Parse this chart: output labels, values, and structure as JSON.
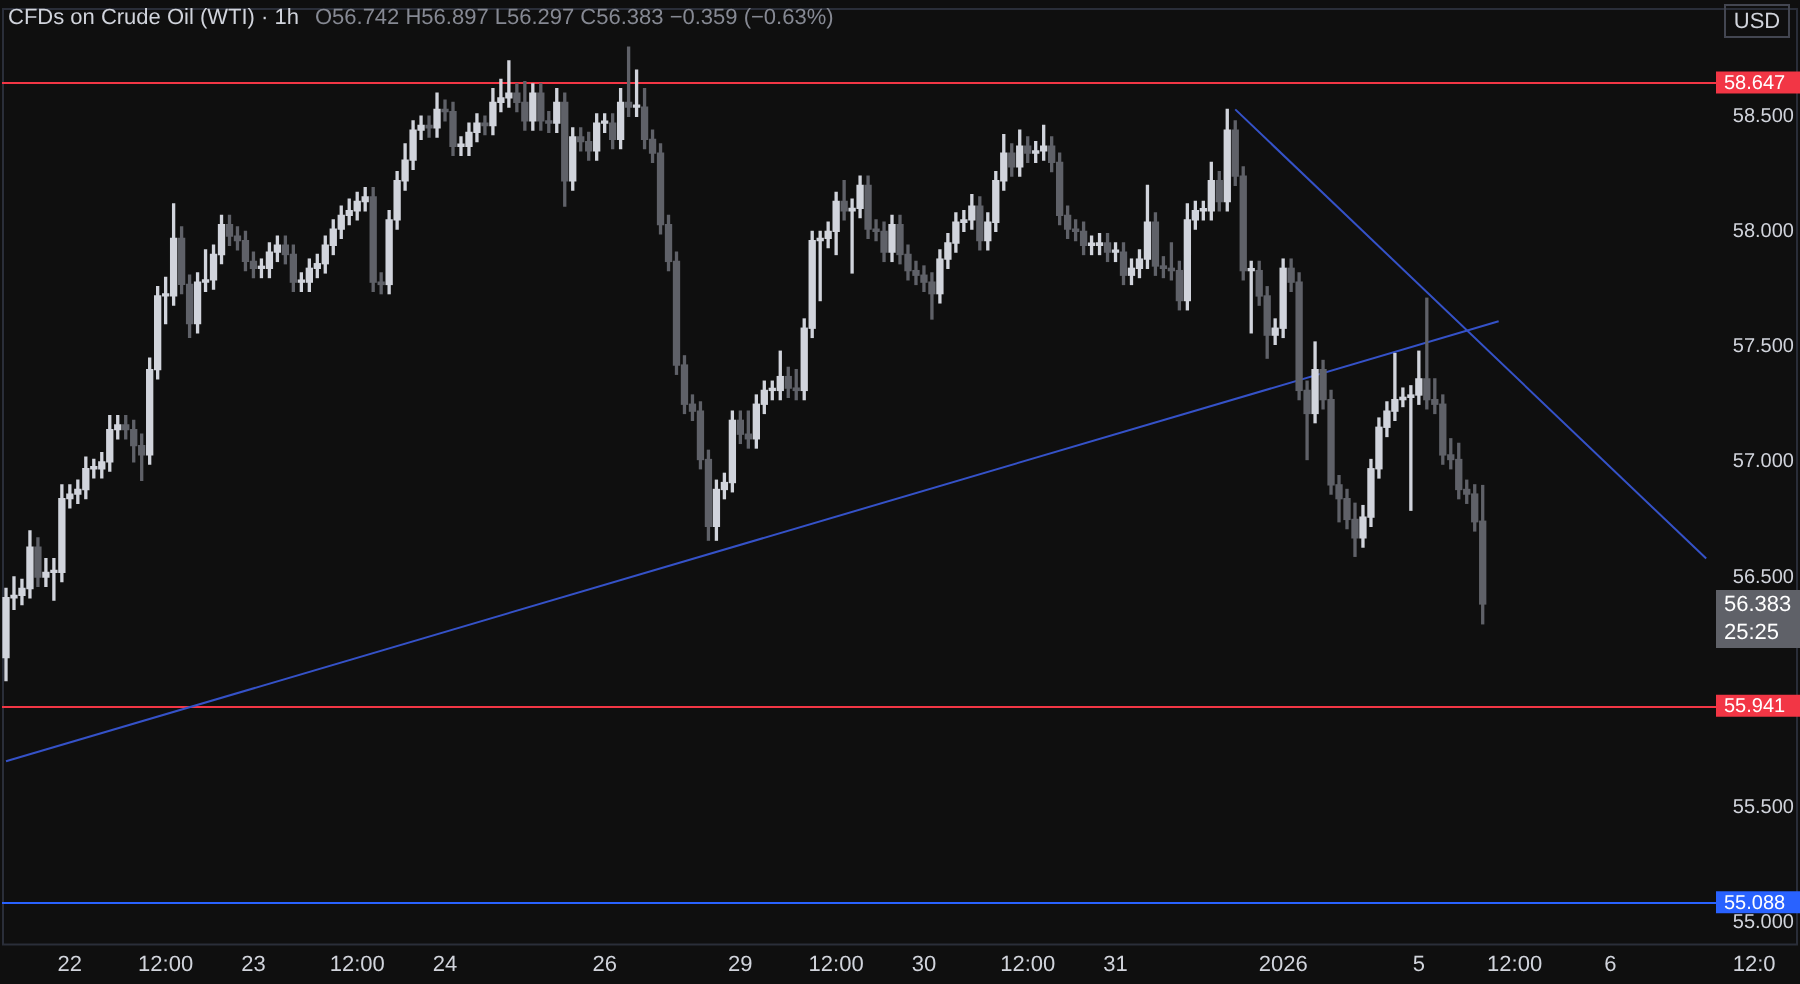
{
  "chart_data": {
    "type": "candlestick",
    "title": "CFDs on Crude Oil (WTI) · 1h",
    "subtitle": "O56.742 H56.897 L56.297 C56.383 −0.359 (−0.63%)",
    "categories": [
      null,
      null,
      null,
      null,
      null,
      null,
      null,
      null,
      "22",
      null,
      null,
      null,
      null,
      null,
      null,
      null,
      null,
      null,
      null,
      null,
      "12:00",
      null,
      null,
      null,
      null,
      null,
      null,
      null,
      null,
      null,
      null,
      "23",
      null,
      null,
      null,
      null,
      null,
      null,
      null,
      null,
      null,
      null,
      null,
      null,
      "12:00",
      null,
      null,
      null,
      null,
      null,
      null,
      null,
      null,
      null,
      null,
      "24",
      null,
      null,
      null,
      null,
      null,
      null,
      null,
      null,
      null,
      null,
      null,
      null,
      null,
      null,
      null,
      null,
      null,
      null,
      null,
      "26",
      null,
      null,
      null,
      null,
      null,
      null,
      null,
      null,
      null,
      null,
      null,
      null,
      null,
      null,
      null,
      null,
      "29",
      null,
      null,
      null,
      null,
      null,
      null,
      null,
      null,
      null,
      null,
      null,
      "12:00",
      null,
      null,
      null,
      null,
      null,
      null,
      null,
      null,
      null,
      null,
      "30",
      null,
      null,
      null,
      null,
      null,
      null,
      null,
      null,
      null,
      null,
      null,
      null,
      "12:00",
      null,
      null,
      null,
      null,
      null,
      null,
      null,
      null,
      null,
      null,
      "31",
      null,
      null,
      null,
      null,
      null,
      null,
      null,
      null,
      null,
      null,
      null,
      null,
      null,
      null,
      null,
      null,
      null,
      null,
      null,
      null,
      "2026",
      null,
      null,
      null,
      null,
      null,
      null,
      null,
      null,
      null,
      null,
      null,
      null,
      null,
      null,
      null,
      null,
      "5",
      null,
      null,
      null,
      null,
      null,
      null,
      null,
      null,
      null,
      null,
      null,
      "12:00",
      null,
      null,
      null,
      null,
      null,
      null,
      null,
      null,
      null,
      null,
      null,
      "6",
      null,
      null,
      null,
      null,
      null,
      null,
      null,
      null,
      null,
      null,
      null,
      null,
      null,
      null,
      null,
      null,
      null,
      "12:0",
      null,
      null,
      null,
      null,
      null
    ],
    "ylim": [
      54.9,
      58.97
    ],
    "yticks": [
      {
        "value": 55,
        "label": "55.000"
      },
      {
        "value": 55.5,
        "label": "55.500"
      },
      {
        "value": 56.5,
        "label": "56.500"
      },
      {
        "value": 57,
        "label": "57.000"
      },
      {
        "value": 57.5,
        "label": "57.500"
      },
      {
        "value": 58,
        "label": "58.000"
      },
      {
        "value": 58.5,
        "label": "58.500"
      }
    ],
    "grid": false,
    "legend": false,
    "series": [
      {
        "colors": [
          "#d1d4dc",
          "#d1d4dc",
          "#d1d4dc",
          "#d1d4dc",
          "#5f6168",
          "#d1d4dc",
          "#d1d4dc",
          "#d1d4dc",
          "#d1d4dc",
          "#d1d4dc",
          "#d1d4dc",
          "#d1d4dc",
          "#d1d4dc",
          "#d1d4dc",
          "#d1d4dc",
          "#5f6168",
          "#5f6168",
          "#5f6168",
          "#d1d4dc",
          "#d1d4dc",
          "#d1d4dc",
          "#d1d4dc",
          "#5f6168",
          "#5f6168",
          "#d1d4dc",
          "#d1d4dc",
          "#d1d4dc",
          "#d1d4dc",
          "#5f6168",
          "#5f6168",
          "#5f6168",
          "#5f6168",
          "#d1d4dc",
          "#d1d4dc",
          "#d1d4dc",
          "#5f6168",
          "#5f6168",
          "#d1d4dc",
          "#d1d4dc",
          "#d1d4dc",
          "#d1d4dc",
          "#d1d4dc",
          "#d1d4dc",
          "#d1d4dc",
          "#d1d4dc",
          "#d1d4dc",
          "#5f6168",
          "#5f6168",
          "#d1d4dc",
          "#d1d4dc",
          "#d1d4dc",
          "#d1d4dc",
          "#d1d4dc",
          "#5f6168",
          "#d1d4dc",
          "#5f6168",
          "#5f6168",
          "#d1d4dc",
          "#d1d4dc",
          "#d1d4dc",
          "#5f6168",
          "#d1d4dc",
          "#d1d4dc",
          "#d1d4dc",
          "#5f6168",
          "#5f6168",
          "#d1d4dc",
          "#5f6168",
          "#5f6168",
          "#d1d4dc",
          "#5f6168",
          "#d1d4dc",
          "#5f6168",
          "#5f6168",
          "#d1d4dc",
          "#d1d4dc",
          "#5f6168",
          "#d1d4dc",
          "#5f6168",
          "#d1d4dc",
          "#5f6168",
          "#5f6168",
          "#5f6168",
          "#5f6168",
          "#5f6168",
          "#5f6168",
          "#5f6168",
          "#5f6168",
          "#5f6168",
          "#d1d4dc",
          "#d1d4dc",
          "#d1d4dc",
          "#5f6168",
          "#5f6168",
          "#d1d4dc",
          "#d1d4dc",
          "#d1d4dc",
          "#d1d4dc",
          "#5f6168",
          "#5f6168",
          "#d1d4dc",
          "#d1d4dc",
          "#d1d4dc",
          "#d1d4dc",
          "#d1d4dc",
          "#5f6168",
          "#d1d4dc",
          "#d1d4dc",
          "#5f6168",
          "#5f6168",
          "#5f6168",
          "#d1d4dc",
          "#5f6168",
          "#5f6168",
          "#5f6168",
          "#5f6168",
          "#5f6168",
          "#d1d4dc",
          "#d1d4dc",
          "#d1d4dc",
          "#d1d4dc",
          "#d1d4dc",
          "#5f6168",
          "#d1d4dc",
          "#d1d4dc",
          "#d1d4dc",
          "#5f6168",
          "#d1d4dc",
          "#5f6168",
          "#d1d4dc",
          "#d1d4dc",
          "#5f6168",
          "#5f6168",
          "#5f6168",
          "#5f6168",
          "#5f6168",
          "#d1d4dc",
          "#d1d4dc",
          "#5f6168",
          "#d1d4dc",
          "#5f6168",
          "#d1d4dc",
          "#d1d4dc",
          "#d1d4dc",
          "#5f6168",
          "#5f6168",
          "#5f6168",
          "#5f6168",
          "#d1d4dc",
          "#d1d4dc",
          "#d1d4dc",
          "#d1d4dc",
          "#5f6168",
          "#d1d4dc",
          "#5f6168",
          "#5f6168",
          "#d1d4dc",
          "#5f6168",
          "#5f6168",
          "#d1d4dc",
          "#d1d4dc",
          "#5f6168",
          "#5f6168",
          "#5f6168",
          "#d1d4dc",
          "#5f6168",
          "#5f6168",
          "#5f6168",
          "#5f6168",
          "#5f6168",
          "#d1d4dc",
          "#d1d4dc",
          "#d1d4dc",
          "#d1d4dc",
          "#d1d4dc",
          "#d1d4dc",
          "#d1d4dc",
          "#d1d4dc",
          "#5f6168",
          "#5f6168",
          "#5f6168",
          "#5f6168",
          "#5f6168",
          "#5f6168",
          "#5f6168",
          "#5f6168",
          null,
          null,
          null,
          null,
          null,
          null,
          null,
          null,
          null,
          null,
          null,
          null,
          null,
          null,
          null,
          null,
          null,
          null,
          null,
          null,
          null,
          null,
          null,
          null,
          null,
          null,
          null,
          null,
          null,
          null,
          null,
          null,
          null,
          null,
          null,
          null,
          null,
          null,
          null
        ],
        "ohlc": [
          [
            56.15,
            56.45,
            56.05,
            56.41
          ],
          [
            56.41,
            56.5,
            56.36,
            56.42
          ],
          [
            56.42,
            56.49,
            56.38,
            56.45
          ],
          [
            56.45,
            56.7,
            56.41,
            56.63
          ],
          [
            56.63,
            56.67,
            56.46,
            56.5
          ],
          [
            56.5,
            56.58,
            56.46,
            56.52
          ],
          [
            56.52,
            56.58,
            56.4,
            56.52
          ],
          [
            56.52,
            56.9,
            56.48,
            56.84
          ],
          [
            56.84,
            56.9,
            56.8,
            56.86
          ],
          [
            56.86,
            56.92,
            56.82,
            56.88
          ],
          [
            56.88,
            57.02,
            56.84,
            56.97
          ],
          [
            56.97,
            57.01,
            56.93,
            56.97
          ],
          [
            56.97,
            57.04,
            56.93,
            57
          ],
          [
            57,
            57.2,
            56.96,
            57.14
          ],
          [
            57.14,
            57.2,
            57.1,
            57.16
          ],
          [
            57.16,
            57.2,
            57.1,
            57.14
          ],
          [
            57.14,
            57.18,
            57,
            57.07
          ],
          [
            57.07,
            57.12,
            56.92,
            57.03
          ],
          [
            57.03,
            57.45,
            56.99,
            57.4
          ],
          [
            57.4,
            57.76,
            57.36,
            57.72
          ],
          [
            57.72,
            57.8,
            57.6,
            57.72
          ],
          [
            57.72,
            58.12,
            57.68,
            57.97
          ],
          [
            57.97,
            58.02,
            57.73,
            57.77
          ],
          [
            57.77,
            57.81,
            57.54,
            57.6
          ],
          [
            57.6,
            57.82,
            57.56,
            57.78
          ],
          [
            57.78,
            57.92,
            57.74,
            57.79
          ],
          [
            57.79,
            57.94,
            57.75,
            57.9
          ],
          [
            57.9,
            58.07,
            57.86,
            58.03
          ],
          [
            58.03,
            58.07,
            57.94,
            57.98
          ],
          [
            57.98,
            58.02,
            57.92,
            57.96
          ],
          [
            57.96,
            58,
            57.83,
            57.87
          ],
          [
            57.87,
            57.91,
            57.8,
            57.84
          ],
          [
            57.84,
            57.88,
            57.8,
            57.84
          ],
          [
            57.84,
            57.95,
            57.8,
            57.91
          ],
          [
            57.91,
            57.98,
            57.87,
            57.94
          ],
          [
            57.94,
            57.98,
            57.86,
            57.9
          ],
          [
            57.9,
            57.94,
            57.74,
            57.78
          ],
          [
            57.78,
            57.82,
            57.74,
            57.78
          ],
          [
            57.78,
            57.88,
            57.74,
            57.84
          ],
          [
            57.84,
            57.9,
            57.8,
            57.86
          ],
          [
            57.86,
            57.98,
            57.82,
            57.94
          ],
          [
            57.94,
            58.05,
            57.9,
            58.01
          ],
          [
            58.01,
            58.11,
            57.97,
            58.07
          ],
          [
            58.07,
            58.14,
            58.03,
            58.09
          ],
          [
            58.09,
            58.17,
            58.05,
            58.13
          ],
          [
            58.13,
            58.19,
            58.09,
            58.15
          ],
          [
            58.15,
            58.19,
            57.74,
            57.78
          ],
          [
            57.78,
            57.82,
            57.73,
            57.77
          ],
          [
            57.77,
            58.09,
            57.73,
            58.05
          ],
          [
            58.05,
            58.26,
            58.01,
            58.22
          ],
          [
            58.22,
            58.38,
            58.18,
            58.31
          ],
          [
            58.31,
            58.48,
            58.27,
            58.44
          ],
          [
            58.44,
            58.5,
            58.4,
            58.46
          ],
          [
            58.46,
            58.5,
            58.41,
            58.45
          ],
          [
            58.45,
            58.6,
            58.41,
            58.53
          ],
          [
            58.53,
            58.57,
            58.48,
            58.52
          ],
          [
            58.52,
            58.56,
            58.33,
            58.37
          ],
          [
            58.37,
            58.41,
            58.33,
            58.37
          ],
          [
            58.37,
            58.47,
            58.33,
            58.43
          ],
          [
            58.43,
            58.51,
            58.39,
            58.47
          ],
          [
            58.47,
            58.5,
            58.42,
            58.46
          ],
          [
            58.46,
            58.62,
            58.42,
            58.56
          ],
          [
            58.56,
            58.66,
            58.52,
            58.58
          ],
          [
            58.58,
            58.74,
            58.54,
            58.6
          ],
          [
            58.6,
            58.64,
            58.52,
            58.56
          ],
          [
            58.56,
            58.65,
            58.44,
            58.48
          ],
          [
            58.48,
            58.64,
            58.44,
            58.6
          ],
          [
            58.6,
            58.64,
            58.44,
            58.48
          ],
          [
            58.48,
            58.52,
            58.43,
            58.47
          ],
          [
            58.47,
            58.62,
            58.43,
            58.56
          ],
          [
            58.56,
            58.6,
            58.11,
            58.22
          ],
          [
            58.22,
            58.45,
            58.18,
            58.41
          ],
          [
            58.41,
            58.45,
            58.35,
            58.39
          ],
          [
            58.39,
            58.43,
            58.31,
            58.35
          ],
          [
            58.35,
            58.51,
            58.31,
            58.47
          ],
          [
            58.47,
            58.51,
            58.43,
            58.47
          ],
          [
            58.47,
            58.51,
            58.36,
            58.4
          ],
          [
            58.4,
            58.62,
            58.36,
            58.56
          ],
          [
            58.56,
            58.8,
            58.5,
            58.54
          ],
          [
            58.54,
            58.7,
            58.5,
            58.54
          ],
          [
            58.54,
            58.62,
            58.36,
            58.4
          ],
          [
            58.4,
            58.44,
            58.3,
            58.34
          ],
          [
            58.34,
            58.38,
            57.99,
            58.03
          ],
          [
            58.03,
            58.07,
            57.83,
            57.87
          ],
          [
            57.87,
            57.91,
            57.38,
            57.42
          ],
          [
            57.42,
            57.46,
            57.21,
            57.25
          ],
          [
            57.25,
            57.29,
            57.18,
            57.22
          ],
          [
            57.22,
            57.26,
            56.97,
            57.01
          ],
          [
            57.01,
            57.05,
            56.66,
            56.72
          ],
          [
            56.72,
            56.92,
            56.66,
            56.88
          ],
          [
            56.88,
            56.95,
            56.84,
            56.91
          ],
          [
            56.91,
            57.22,
            56.87,
            57.18
          ],
          [
            57.18,
            57.22,
            57.08,
            57.12
          ],
          [
            57.12,
            57.22,
            57.06,
            57.1
          ],
          [
            57.1,
            57.29,
            57.06,
            57.25
          ],
          [
            57.25,
            57.35,
            57.21,
            57.31
          ],
          [
            57.31,
            57.35,
            57.27,
            57.31
          ],
          [
            57.31,
            57.48,
            57.27,
            57.37
          ],
          [
            57.37,
            57.41,
            57.28,
            57.32
          ],
          [
            57.32,
            57.4,
            57.27,
            57.31
          ],
          [
            57.31,
            57.62,
            57.27,
            57.58
          ],
          [
            57.58,
            58,
            57.54,
            57.96
          ],
          [
            57.96,
            58,
            57.7,
            57.97
          ],
          [
            57.97,
            58.04,
            57.93,
            58
          ],
          [
            58,
            58.17,
            57.9,
            58.13
          ],
          [
            58.13,
            58.22,
            58.05,
            58.09
          ],
          [
            58.09,
            58.14,
            57.82,
            58.1
          ],
          [
            58.1,
            58.24,
            58.06,
            58.2
          ],
          [
            58.2,
            58.24,
            57.97,
            58.01
          ],
          [
            58.01,
            58.05,
            57.96,
            58
          ],
          [
            58,
            58.04,
            57.87,
            57.91
          ],
          [
            57.91,
            58.07,
            57.87,
            58.03
          ],
          [
            58.03,
            58.07,
            57.86,
            57.9
          ],
          [
            57.9,
            57.94,
            57.79,
            57.83
          ],
          [
            57.83,
            57.87,
            57.77,
            57.81
          ],
          [
            57.81,
            57.85,
            57.74,
            57.78
          ],
          [
            57.78,
            57.82,
            57.62,
            57.73
          ],
          [
            57.73,
            57.92,
            57.69,
            57.88
          ],
          [
            57.88,
            57.99,
            57.84,
            57.95
          ],
          [
            57.95,
            58.08,
            57.91,
            58.04
          ],
          [
            58.04,
            58.09,
            58,
            58.05
          ],
          [
            58.05,
            58.16,
            58.01,
            58.11
          ],
          [
            58.11,
            58.15,
            57.92,
            57.96
          ],
          [
            57.96,
            58.08,
            57.92,
            58.04
          ],
          [
            58.04,
            58.26,
            58,
            58.22
          ],
          [
            58.22,
            58.42,
            58.18,
            58.34
          ],
          [
            58.34,
            58.38,
            58.24,
            58.28
          ],
          [
            58.28,
            58.44,
            58.24,
            58.37
          ],
          [
            58.37,
            58.41,
            58.3,
            58.34
          ],
          [
            58.34,
            58.39,
            58.3,
            58.35
          ],
          [
            58.35,
            58.46,
            58.31,
            58.37
          ],
          [
            58.37,
            58.41,
            58.26,
            58.3
          ],
          [
            58.3,
            58.34,
            58.03,
            58.07
          ],
          [
            58.07,
            58.11,
            57.97,
            58.01
          ],
          [
            58.01,
            58.05,
            57.96,
            58
          ],
          [
            58,
            58.04,
            57.9,
            57.94
          ],
          [
            57.94,
            57.98,
            57.9,
            57.94
          ],
          [
            57.94,
            57.99,
            57.9,
            57.95
          ],
          [
            57.95,
            57.99,
            57.87,
            57.91
          ],
          [
            57.91,
            57.95,
            57.87,
            57.91
          ],
          [
            57.91,
            57.95,
            57.77,
            57.81
          ],
          [
            57.81,
            57.88,
            57.77,
            57.84
          ],
          [
            57.84,
            57.92,
            57.8,
            57.88
          ],
          [
            57.88,
            58.2,
            57.84,
            58.04
          ],
          [
            58.04,
            58.08,
            57.81,
            57.85
          ],
          [
            57.85,
            57.89,
            57.8,
            57.84
          ],
          [
            57.84,
            57.95,
            57.79,
            57.83
          ],
          [
            57.83,
            57.87,
            57.66,
            57.7
          ],
          [
            57.7,
            58.12,
            57.66,
            58.05
          ],
          [
            58.05,
            58.13,
            58.01,
            58.09
          ],
          [
            58.09,
            58.13,
            58.05,
            58.09
          ],
          [
            58.09,
            58.3,
            58.05,
            58.22
          ],
          [
            58.22,
            58.26,
            58.09,
            58.13
          ],
          [
            58.13,
            58.53,
            58.09,
            58.44
          ],
          [
            58.44,
            58.48,
            58.2,
            58.24
          ],
          [
            58.24,
            58.28,
            57.79,
            57.83
          ],
          [
            57.83,
            57.87,
            57.56,
            57.83
          ],
          [
            57.83,
            57.87,
            57.68,
            57.72
          ],
          [
            57.72,
            57.76,
            57.45,
            57.55
          ],
          [
            57.55,
            57.62,
            57.51,
            57.58
          ],
          [
            57.58,
            57.88,
            57.54,
            57.84
          ],
          [
            57.84,
            57.88,
            57.74,
            57.78
          ],
          [
            57.78,
            57.82,
            57.27,
            57.31
          ],
          [
            57.31,
            57.35,
            57.01,
            57.21
          ],
          [
            57.21,
            57.52,
            57.17,
            57.4
          ],
          [
            57.4,
            57.44,
            57.23,
            57.27
          ],
          [
            57.27,
            57.31,
            56.86,
            56.9
          ],
          [
            56.9,
            56.94,
            56.74,
            56.84
          ],
          [
            56.84,
            56.88,
            56.71,
            56.75
          ],
          [
            56.75,
            56.82,
            56.59,
            56.67
          ],
          [
            56.67,
            56.81,
            56.63,
            56.76
          ],
          [
            56.76,
            57.01,
            56.72,
            56.97
          ],
          [
            56.97,
            57.19,
            56.93,
            57.15
          ],
          [
            57.15,
            57.26,
            57.11,
            57.22
          ],
          [
            57.22,
            57.47,
            57.18,
            57.27
          ],
          [
            57.27,
            57.32,
            57.24,
            57.28
          ],
          [
            57.28,
            57.33,
            56.79,
            57.29
          ],
          [
            57.29,
            57.48,
            57.25,
            57.36
          ],
          [
            57.36,
            57.71,
            57.23,
            57.27
          ],
          [
            57.27,
            57.36,
            57.21,
            57.25
          ],
          [
            57.25,
            57.29,
            56.99,
            57.03
          ],
          [
            57.03,
            57.1,
            56.97,
            57.01
          ],
          [
            57.01,
            57.08,
            56.84,
            56.88
          ],
          [
            56.88,
            56.92,
            56.82,
            56.86
          ],
          [
            56.86,
            56.9,
            56.7,
            56.74
          ],
          [
            56.742,
            56.897,
            56.297,
            56.383
          ],
          null,
          null,
          null,
          null,
          null,
          null,
          null,
          null,
          null,
          null,
          null,
          null,
          null,
          null,
          null,
          null,
          null,
          null,
          null,
          null,
          null,
          null,
          null,
          null,
          null,
          null,
          null,
          null,
          null,
          null,
          null,
          null,
          null,
          null,
          null,
          null,
          null,
          null,
          null
        ]
      },
      {
        "type": "line",
        "color": "#3552c8",
        "values": [
          55.7,
          null,
          null,
          null,
          null,
          null,
          null,
          null,
          null,
          null,
          null,
          null,
          null,
          null,
          null,
          null,
          null,
          null,
          null,
          null,
          null,
          null,
          null,
          null,
          null,
          null,
          null,
          null,
          null,
          null,
          null,
          null,
          null,
          null,
          null,
          null,
          null,
          null,
          null,
          null,
          null,
          null,
          null,
          null,
          null,
          null,
          null,
          null,
          null,
          null,
          null,
          null,
          null,
          null,
          null,
          null,
          null,
          null,
          null,
          null,
          null,
          null,
          null,
          null,
          null,
          null,
          null,
          null,
          null,
          null,
          null,
          null,
          null,
          null,
          null,
          null,
          null,
          null,
          null,
          null,
          null,
          null,
          null,
          null,
          null,
          null,
          null,
          null,
          null,
          null,
          null,
          null,
          null,
          null,
          null,
          null,
          null,
          null,
          null,
          null,
          null,
          null,
          null,
          null,
          null,
          null,
          null,
          null,
          null,
          null,
          null,
          null,
          null,
          null,
          null,
          null,
          null,
          null,
          null,
          null,
          null,
          null,
          null,
          null,
          null,
          null,
          null,
          null,
          null,
          null,
          null,
          null,
          null,
          null,
          null,
          null,
          null,
          null,
          null,
          null,
          null,
          null,
          null,
          null,
          null,
          null,
          null,
          null,
          null,
          null,
          null,
          null,
          null,
          null,
          null,
          null,
          null,
          null,
          null,
          null,
          null,
          null,
          null,
          null,
          null,
          null,
          null,
          null,
          null,
          null,
          null,
          null,
          null,
          null,
          null,
          null,
          null,
          null,
          null,
          null,
          null,
          null,
          null,
          null,
          null,
          null,
          null,
          57.61,
          null,
          null,
          null,
          null,
          null,
          null,
          null,
          null,
          null,
          null,
          null,
          null,
          null,
          null,
          null,
          null,
          null,
          null,
          null,
          null,
          null,
          null,
          null,
          null,
          null,
          null,
          null,
          null,
          null,
          null,
          null,
          null,
          null,
          null,
          null,
          null,
          null
        ]
      },
      {
        "type": "line",
        "color": "#3552c8",
        "values": [
          null,
          null,
          null,
          null,
          null,
          null,
          null,
          null,
          null,
          null,
          null,
          null,
          null,
          null,
          null,
          null,
          null,
          null,
          null,
          null,
          null,
          null,
          null,
          null,
          null,
          null,
          null,
          null,
          null,
          null,
          null,
          null,
          null,
          null,
          null,
          null,
          null,
          null,
          null,
          null,
          null,
          null,
          null,
          null,
          null,
          null,
          null,
          null,
          null,
          null,
          null,
          null,
          null,
          null,
          null,
          null,
          null,
          null,
          null,
          null,
          null,
          null,
          null,
          null,
          null,
          null,
          null,
          null,
          null,
          null,
          null,
          null,
          null,
          null,
          null,
          null,
          null,
          null,
          null,
          null,
          null,
          null,
          null,
          null,
          null,
          null,
          null,
          null,
          null,
          null,
          null,
          null,
          null,
          null,
          null,
          null,
          null,
          null,
          null,
          null,
          null,
          null,
          null,
          null,
          null,
          null,
          null,
          null,
          null,
          null,
          null,
          null,
          null,
          null,
          null,
          null,
          null,
          null,
          null,
          null,
          null,
          null,
          null,
          null,
          null,
          null,
          null,
          null,
          null,
          null,
          null,
          null,
          null,
          null,
          null,
          null,
          null,
          null,
          null,
          null,
          null,
          null,
          null,
          null,
          null,
          null,
          null,
          null,
          null,
          null,
          null,
          null,
          null,
          null,
          58.53,
          null,
          null,
          null,
          null,
          null,
          null,
          null,
          null,
          null,
          null,
          null,
          null,
          null,
          null,
          null,
          null,
          null,
          null,
          null,
          null,
          null,
          null,
          null,
          null,
          null,
          null,
          null,
          null,
          null,
          null,
          null,
          null,
          null,
          null,
          null,
          null,
          null,
          null,
          null,
          null,
          null,
          null,
          null,
          null,
          null,
          null,
          null,
          null,
          null,
          null,
          null,
          null,
          null,
          null,
          null,
          null,
          null,
          null,
          56.58,
          null,
          null,
          null,
          null,
          null,
          null,
          null,
          null,
          null,
          null,
          null
        ]
      }
    ],
    "ref_lines": [
      {
        "axis": "y",
        "value": 58.647,
        "label": "58.647",
        "color": "#f23645"
      },
      {
        "axis": "y",
        "value": 55.941,
        "label": "55.941",
        "color": "#f23645"
      },
      {
        "axis": "y",
        "value": 55.088,
        "label": "55.088",
        "color": "#2962ff"
      }
    ],
    "annotations": [
      "56.383",
      "25:25",
      "USD"
    ]
  }
}
